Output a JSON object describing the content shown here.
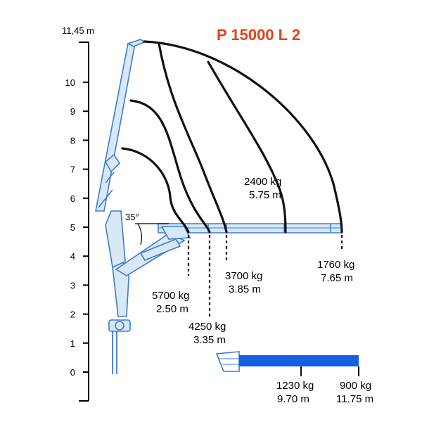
{
  "title": "P 15000 L 2",
  "colors": {
    "title": "#e8401c",
    "crane": "#3a7bd5",
    "extension_jib": "#1560e0",
    "curves": "#111111"
  },
  "axis": {
    "top_label": "11,45 m",
    "ticks": [
      "0",
      "1",
      "2",
      "3",
      "4",
      "5",
      "6",
      "7",
      "8",
      "9",
      "10"
    ]
  },
  "angle_label": "35°",
  "load_points": [
    {
      "id": "p1",
      "load": "5700 kg",
      "reach": "2.50 m"
    },
    {
      "id": "p2",
      "load": "4250 kg",
      "reach": "3.35 m"
    },
    {
      "id": "p3",
      "load": "3700 kg",
      "reach": "3.85 m"
    },
    {
      "id": "p4",
      "load": "2400 kg",
      "reach": "5.75 m"
    },
    {
      "id": "p5",
      "load": "1760 kg",
      "reach": "7.65 m"
    },
    {
      "id": "p6",
      "load": "1230 kg",
      "reach": "9.70 m"
    },
    {
      "id": "p7",
      "load": "900 kg",
      "reach": "11.75 m"
    }
  ]
}
